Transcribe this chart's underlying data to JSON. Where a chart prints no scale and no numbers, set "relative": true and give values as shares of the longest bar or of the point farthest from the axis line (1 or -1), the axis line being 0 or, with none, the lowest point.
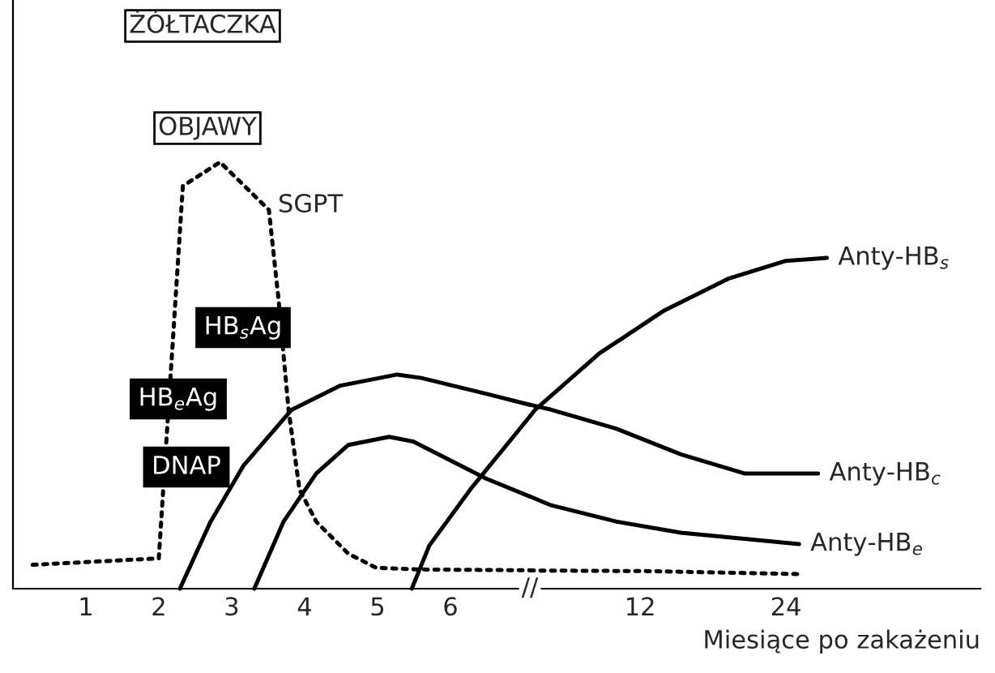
{
  "chart_data": [
    {
      "type": "line",
      "relative": true,
      "xlim": [
        0,
        7.09
      ],
      "xticks": [
        1,
        2,
        3,
        4,
        5,
        6
      ],
      "grid": false,
      "legend": false,
      "marker": "none",
      "series": [
        {
          "name": "SGPT",
          "color": "#000000",
          "line_style": "dotted",
          "x": [
            0.27,
            2.0,
            2.33,
            2.84,
            3.51,
            3.64,
            3.78,
            3.93,
            4.16,
            4.6,
            4.98,
            5.6,
            7.09
          ],
          "values": [
            0.056,
            0.071,
            0.944,
            1,
            0.888,
            0.682,
            0.419,
            0.232,
            0.157,
            0.082,
            0.049,
            0.045,
            0.043
          ]
        },
        {
          "color": "#000000",
          "line_style": "solid",
          "x": [
            5.47,
            5.71,
            6.27,
            7.09
          ],
          "values": [
            0,
            0.101,
            0.232,
            0.404
          ]
        },
        {
          "color": "#000000",
          "line_style": "solid",
          "x": [
            2.29,
            2.71,
            3.16,
            3.82,
            4.49,
            5.27,
            5.6,
            6.49,
            7.09
          ],
          "values": [
            0,
            0.157,
            0.288,
            0.419,
            0.476,
            0.502,
            0.494,
            0.457,
            0.431
          ]
        },
        {
          "color": "#000000",
          "line_style": "solid",
          "x": [
            3.31,
            3.71,
            4.16,
            4.6,
            5.16,
            5.49,
            6.49,
            7.09
          ],
          "values": [
            0,
            0.157,
            0.27,
            0.337,
            0.356,
            0.345,
            0.258,
            0.216
          ]
        }
      ],
      "annotations": [
        "ŻÓŁTACZKA",
        "OBJAWY",
        "HB$_{s}$Ag",
        "HB$_{e}$Ag",
        "DNAP"
      ]
    },
    {
      "type": "line",
      "relative": true,
      "xlim": [
        2.93,
        40
      ],
      "xticks": [
        12,
        24
      ],
      "tick_labels": "x",
      "xlabel": "Miesiące po zakażeniu",
      "grid": false,
      "legend": false,
      "marker": "none",
      "series": [
        {
          "color": "#000000",
          "line_style": "dotted",
          "x": [
            2.93,
            12.66,
            25.3
          ],
          "values": [
            0.055,
            0.053,
            0.044
          ]
        },
        {
          "name": "Anty-HB$_{s}$",
          "color": "#000000",
          "line_style": "solid",
          "x": [
            2.93,
            3.36,
            8.64,
            13.98,
            19.32,
            24.0,
            27.36
          ],
          "values": [
            0.521,
            0.541,
            0.711,
            0.841,
            0.938,
            0.991,
            1
          ]
        },
        {
          "name": "Anty-HB$_{c}$",
          "color": "#000000",
          "line_style": "solid",
          "x": [
            2.93,
            4.68,
            10.02,
            15.36,
            20.64,
            26.64
          ],
          "values": [
            0.556,
            0.541,
            0.484,
            0.406,
            0.348,
            0.348
          ]
        },
        {
          "name": "Anty-HB$_{e}$",
          "color": "#000000",
          "line_style": "solid",
          "x": [
            2.93,
            4.68,
            10.02,
            15.36,
            25.08
          ],
          "values": [
            0.279,
            0.252,
            0.203,
            0.169,
            0.135
          ]
        }
      ],
      "annotations": [
        "//"
      ]
    }
  ]
}
